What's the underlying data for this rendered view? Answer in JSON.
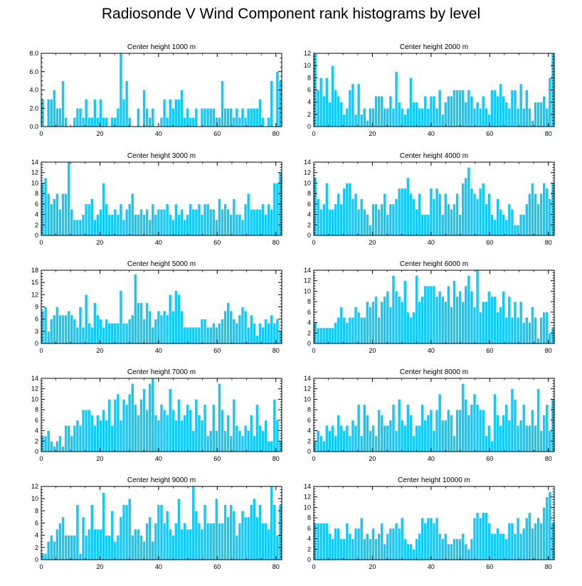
{
  "title": "Radiosonde V Wind Component rank histograms by level",
  "colors": {
    "bar": "#16C8F5",
    "bar_edge": "#ffffff",
    "axis": "#000000"
  },
  "chart_data": [
    {
      "type": "bar",
      "title": "Center height 1000 m",
      "xlim": [
        0,
        82
      ],
      "ylim": [
        0,
        8
      ],
      "xticks": [
        0,
        20,
        40,
        60,
        80
      ],
      "yticks": [
        "0.0",
        "2.0",
        "4.0",
        "6.0",
        "8.0"
      ],
      "values": [
        3,
        0,
        3,
        3,
        4,
        2,
        2,
        5,
        1,
        0,
        0,
        1,
        2,
        2,
        1,
        3,
        1,
        1,
        3,
        1,
        3,
        1,
        1,
        0,
        1,
        1,
        2,
        8,
        3,
        5,
        1,
        0,
        0,
        2,
        0,
        4,
        2,
        1,
        2,
        0,
        0,
        1,
        3,
        1,
        3,
        2,
        3,
        3,
        4,
        1,
        2,
        1,
        1,
        2,
        0,
        2,
        2,
        2,
        2,
        2,
        1,
        1,
        5,
        2,
        2,
        2,
        1,
        2,
        1,
        2,
        1,
        2,
        2,
        2,
        2,
        3,
        1,
        0,
        1,
        5,
        0,
        6,
        5
      ]
    },
    {
      "type": "bar",
      "title": "Center height 2000 m",
      "xlim": [
        0,
        82
      ],
      "ylim": [
        0,
        12
      ],
      "xticks": [
        0,
        20,
        40,
        60,
        80
      ],
      "yticks": [
        "0",
        "2",
        "4",
        "6",
        "8",
        "10",
        "12"
      ],
      "values": [
        12,
        6,
        8,
        5,
        8,
        4,
        10,
        6,
        5,
        4,
        2,
        3,
        6,
        7,
        2,
        7,
        2,
        3,
        1,
        3,
        3,
        5,
        5,
        5,
        3,
        3,
        5,
        3,
        9,
        4,
        3,
        2,
        3,
        8,
        4,
        4,
        3,
        3,
        5,
        3,
        5,
        5,
        3,
        6,
        2,
        4,
        5,
        5,
        6,
        6,
        6,
        6,
        4,
        6,
        5,
        3,
        4,
        3,
        5,
        3,
        2,
        6,
        6,
        5,
        7,
        5,
        4,
        3,
        6,
        6,
        3,
        7,
        3,
        6,
        3,
        1,
        4,
        4,
        4,
        5,
        3,
        8,
        12
      ]
    },
    {
      "type": "bar",
      "title": "Center height 3000 m",
      "xlim": [
        0,
        82
      ],
      "ylim": [
        0,
        14
      ],
      "xticks": [
        0,
        20,
        40,
        60,
        80
      ],
      "yticks": [
        "0",
        "2",
        "4",
        "6",
        "8",
        "10",
        "12",
        "14"
      ],
      "values": [
        10,
        11,
        8,
        6,
        7,
        8,
        5,
        8,
        8,
        14,
        5,
        3,
        3,
        3,
        4,
        6,
        6,
        7,
        3,
        4,
        5,
        10,
        6,
        4,
        4,
        5,
        4,
        6,
        3,
        5,
        6,
        8,
        4,
        4,
        5,
        4,
        5,
        3,
        6,
        4,
        5,
        5,
        5,
        6,
        4,
        3,
        6,
        4,
        5,
        3,
        4,
        6,
        5,
        5,
        6,
        4,
        6,
        6,
        5,
        5,
        3,
        7,
        5,
        6,
        5,
        4,
        7,
        4,
        4,
        3,
        6,
        8,
        5,
        5,
        5,
        5,
        6,
        4,
        6,
        5,
        10,
        10,
        12
      ]
    },
    {
      "type": "bar",
      "title": "Center height 4000 m",
      "xlim": [
        0,
        82
      ],
      "ylim": [
        0,
        14
      ],
      "xticks": [
        0,
        20,
        40,
        60,
        80
      ],
      "yticks": [
        "0",
        "2",
        "4",
        "6",
        "8",
        "10",
        "12",
        "14"
      ],
      "values": [
        11,
        7,
        5,
        6,
        10,
        5,
        5,
        6,
        8,
        6,
        9,
        10,
        10,
        7,
        8,
        5,
        7,
        5,
        4,
        2,
        6,
        6,
        5,
        6,
        8,
        4,
        6,
        6,
        7,
        9,
        9,
        9,
        11,
        8,
        7,
        5,
        8,
        4,
        4,
        4,
        9,
        7,
        9,
        8,
        4,
        8,
        6,
        5,
        6,
        8,
        4,
        10,
        11,
        13,
        9,
        8,
        7,
        9,
        10,
        6,
        8,
        4,
        3,
        7,
        5,
        4,
        3,
        6,
        5,
        2,
        2,
        4,
        4,
        6,
        8,
        10,
        8,
        6,
        8,
        10,
        9,
        7,
        10
      ]
    },
    {
      "type": "bar",
      "title": "Center height 5000 m",
      "xlim": [
        0,
        82
      ],
      "ylim": [
        0,
        18
      ],
      "xticks": [
        0,
        20,
        40,
        60,
        80
      ],
      "yticks": [
        "0",
        "3",
        "6",
        "9",
        "12",
        "15",
        "18"
      ],
      "values": [
        8,
        9,
        3,
        6,
        7,
        9,
        7,
        7,
        7,
        8,
        7,
        6,
        4,
        9,
        4,
        12,
        5,
        4,
        10,
        7,
        6,
        4,
        6,
        5,
        5,
        5,
        5,
        13,
        5,
        5,
        6,
        7,
        17,
        10,
        10,
        6,
        10,
        8,
        4,
        6,
        8,
        7,
        8,
        7,
        12,
        8,
        13,
        12,
        8,
        4,
        4,
        4,
        4,
        4,
        4,
        6,
        6,
        4,
        4,
        5,
        4,
        5,
        6,
        8,
        10,
        8,
        6,
        5,
        7,
        9,
        8,
        4,
        7,
        5,
        2,
        5,
        4,
        6,
        5,
        7,
        5,
        6,
        3
      ]
    },
    {
      "type": "bar",
      "title": "Center height 6000 m",
      "xlim": [
        0,
        82
      ],
      "ylim": [
        0,
        14
      ],
      "xticks": [
        0,
        20,
        40,
        60,
        80
      ],
      "yticks": [
        "0",
        "2",
        "4",
        "6",
        "8",
        "10",
        "12",
        "14"
      ],
      "values": [
        4,
        3,
        3,
        3,
        3,
        3,
        3,
        4,
        5,
        7,
        5,
        4,
        5,
        5,
        7,
        6,
        5,
        5,
        8,
        7,
        8,
        9,
        5,
        8,
        9,
        10,
        7,
        13,
        10,
        9,
        8,
        12,
        6,
        5,
        6,
        13,
        8,
        9,
        11,
        11,
        11,
        11,
        9,
        10,
        9,
        8,
        11,
        7,
        12,
        9,
        10,
        8,
        11,
        13,
        10,
        7,
        14,
        6,
        8,
        8,
        10,
        9,
        9,
        6,
        7,
        10,
        5,
        9,
        5,
        8,
        5,
        8,
        4,
        5,
        4,
        7,
        5,
        1,
        5,
        6,
        6,
        2,
        3
      ]
    },
    {
      "type": "bar",
      "title": "Center height 7000 m",
      "xlim": [
        0,
        82
      ],
      "ylim": [
        0,
        14
      ],
      "xticks": [
        0,
        20,
        40,
        60,
        80
      ],
      "yticks": [
        "0",
        "2",
        "4",
        "6",
        "8",
        "10",
        "12",
        "14"
      ],
      "values": [
        3,
        3,
        4,
        2,
        1,
        2,
        3,
        1,
        5,
        5,
        3,
        5,
        6,
        5,
        8,
        8,
        8,
        7,
        5,
        7,
        6,
        8,
        6,
        10,
        5,
        10,
        11,
        6,
        10,
        9,
        11,
        13,
        9,
        7,
        10,
        12,
        8,
        13,
        14,
        7,
        6,
        9,
        8,
        7,
        12,
        8,
        6,
        10,
        6,
        7,
        9,
        8,
        4,
        10,
        7,
        6,
        9,
        3,
        4,
        9,
        4,
        13,
        8,
        4,
        7,
        3,
        10,
        5,
        4,
        3,
        5,
        4,
        7,
        3,
        9,
        5,
        4,
        6,
        2,
        2,
        10,
        6,
        2
      ]
    },
    {
      "type": "bar",
      "title": "Center height 8000 m",
      "xlim": [
        0,
        82
      ],
      "ylim": [
        0,
        14
      ],
      "xticks": [
        0,
        20,
        40,
        60,
        80
      ],
      "yticks": [
        "0",
        "2",
        "4",
        "6",
        "8",
        "10",
        "12",
        "14"
      ],
      "values": [
        2,
        4,
        3,
        2,
        5,
        4,
        5,
        3,
        7,
        5,
        4,
        5,
        3,
        6,
        5,
        9,
        3,
        9,
        7,
        4,
        5,
        3,
        8,
        7,
        5,
        5,
        6,
        9,
        4,
        10,
        6,
        5,
        9,
        7,
        3,
        5,
        5,
        9,
        6,
        7,
        8,
        4,
        8,
        11,
        6,
        6,
        8,
        7,
        3,
        8,
        8,
        13,
        10,
        7,
        9,
        11,
        9,
        8,
        8,
        3,
        5,
        2,
        11,
        7,
        5,
        7,
        9,
        6,
        12,
        10,
        5,
        6,
        9,
        5,
        5,
        8,
        5,
        12,
        4,
        7,
        9,
        4,
        10
      ]
    },
    {
      "type": "bar",
      "title": "Center height 9000 m",
      "xlim": [
        0,
        82
      ],
      "ylim": [
        0,
        12
      ],
      "xticks": [
        0,
        20,
        40,
        60,
        80
      ],
      "yticks": [
        "0",
        "2",
        "4",
        "6",
        "8",
        "10",
        "12"
      ],
      "values": [
        1,
        1,
        3,
        4,
        3,
        5,
        6,
        7,
        4,
        4,
        4,
        4,
        9,
        1,
        7,
        4,
        5,
        9,
        5,
        5,
        5,
        11,
        4,
        4,
        8,
        3,
        4,
        7,
        9,
        9,
        10,
        4,
        5,
        5,
        4,
        3,
        6,
        7,
        3,
        6,
        9,
        9,
        6,
        8,
        5,
        4,
        6,
        10,
        5,
        6,
        5,
        5,
        12,
        8,
        6,
        5,
        9,
        6,
        6,
        6,
        10,
        6,
        6,
        9,
        7,
        9,
        8,
        4,
        6,
        8,
        7,
        7,
        9,
        10,
        7,
        9,
        6,
        6,
        5,
        12,
        9,
        4,
        9
      ]
    },
    {
      "type": "bar",
      "title": "Center height 10000 m",
      "xlim": [
        0,
        82
      ],
      "ylim": [
        0,
        14
      ],
      "xticks": [
        0,
        20,
        40,
        60,
        80
      ],
      "yticks": [
        "0",
        "2",
        "4",
        "6",
        "8",
        "10",
        "12",
        "14"
      ],
      "values": [
        7,
        7,
        7,
        7,
        7,
        5,
        4,
        6,
        6,
        4,
        4,
        7,
        5,
        4,
        6,
        6,
        8,
        4,
        5,
        4,
        6,
        4,
        5,
        7,
        3,
        5,
        6,
        6,
        7,
        6,
        8,
        4,
        3,
        3,
        2,
        4,
        5,
        8,
        7,
        8,
        8,
        7,
        8,
        5,
        4,
        5,
        3,
        3,
        4,
        4,
        4,
        5,
        3,
        2,
        4,
        8,
        9,
        8,
        9,
        9,
        7,
        5,
        5,
        6,
        5,
        5,
        4,
        7,
        7,
        5,
        8,
        5,
        6,
        8,
        9,
        6,
        7,
        8,
        7,
        10,
        12,
        13,
        7
      ]
    }
  ]
}
